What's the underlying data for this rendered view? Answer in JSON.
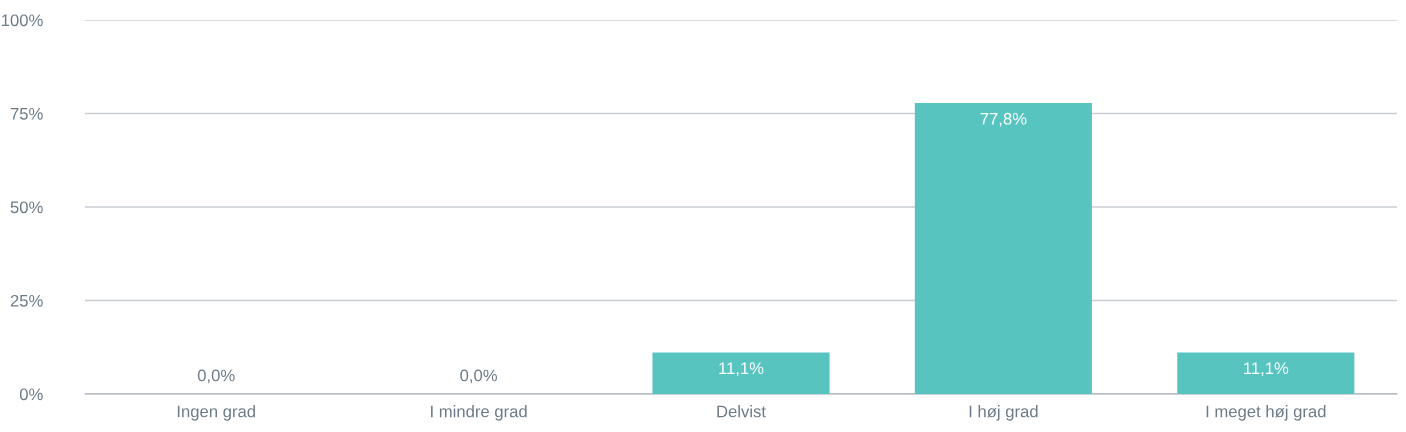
{
  "chart_data": {
    "type": "bar",
    "categories": [
      "Ingen grad",
      "I mindre grad",
      "Delvist",
      "I høj grad",
      "I meget høj grad"
    ],
    "values": [
      0.0,
      0.0,
      11.1,
      77.8,
      11.1
    ],
    "value_labels": [
      "0,0%",
      "0,0%",
      "11,1%",
      "77,8%",
      "11,1%"
    ],
    "color": "#58c4c0",
    "ylim": [
      0,
      100
    ],
    "yticks": [
      {
        "value": 0,
        "label": "0%"
      },
      {
        "value": 25,
        "label": "25%"
      },
      {
        "value": 50,
        "label": "50%"
      },
      {
        "value": 75,
        "label": "75%"
      },
      {
        "value": 100,
        "label": "100%"
      }
    ],
    "grid": "y"
  }
}
